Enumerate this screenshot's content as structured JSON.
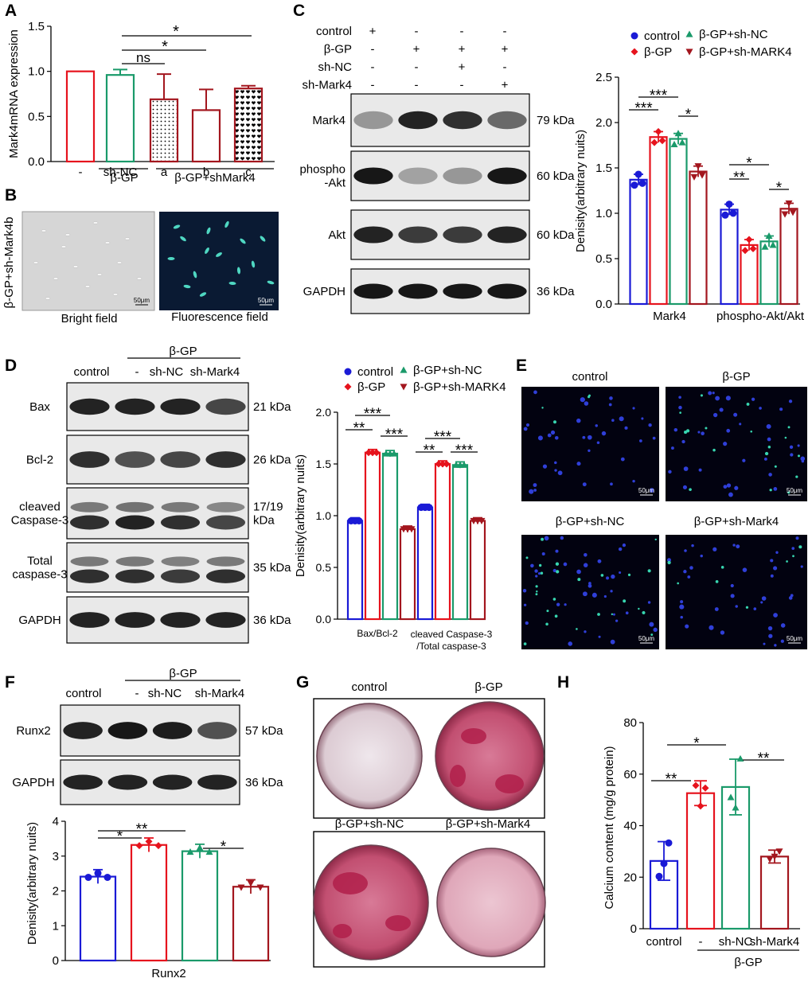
{
  "colors": {
    "control": "#1a1ad6",
    "bgp": "#e6131d",
    "shnc": "#1a9a6a",
    "shmark4": "#a3161e"
  },
  "panelA": {
    "label": "A",
    "ylabel": "Mark4mRNA expression",
    "groups": [
      "β-GP",
      "β-GP+shMark4"
    ],
    "sig": [
      "*",
      "*",
      "ns"
    ],
    "chart_data": {
      "type": "bar",
      "categories": [
        "-",
        "sh-NC",
        "a",
        "b",
        "c"
      ],
      "values": [
        1.0,
        0.96,
        0.69,
        0.57,
        0.81
      ],
      "errors": [
        0,
        0.06,
        0.28,
        0.23,
        0.03
      ],
      "ylim": [
        0,
        1.5
      ],
      "yticks": [
        "0.0",
        "0.5",
        "1.0",
        "1.5"
      ]
    }
  },
  "panelB": {
    "label": "B",
    "side_label": "β-GP+sh-Mark4b",
    "bright_caption": "Bright field",
    "fluor_caption": "Fluorescence field",
    "scale": "50μm"
  },
  "panelC": {
    "label": "C",
    "rows": [
      {
        "name": "control",
        "signs": [
          "+",
          "-",
          "-",
          "-"
        ]
      },
      {
        "name": "β-GP",
        "signs": [
          "-",
          "+",
          "+",
          "+"
        ]
      },
      {
        "name": "sh-NC",
        "signs": [
          "-",
          "-",
          "+",
          "-"
        ]
      },
      {
        "name": "sh-Mark4",
        "signs": [
          "-",
          "-",
          "-",
          "+"
        ]
      }
    ],
    "blots": [
      {
        "name": "Mark4",
        "kda": "79 kDa"
      },
      {
        "name": "phospho\n-Akt",
        "kda": "60 kDa"
      },
      {
        "name": "Akt",
        "kda": "60 kDa"
      },
      {
        "name": "GAPDH",
        "kda": "36 kDa"
      }
    ],
    "legend": [
      "control",
      "β-GP",
      "β-GP+sh-NC",
      "β-GP+sh-MARK4"
    ],
    "ylabel": "Denisity(arbitrary nuits)",
    "chart_data": {
      "type": "bar",
      "categories": [
        "Mark4",
        "phospho-Akt/Akt"
      ],
      "series": [
        {
          "name": "control",
          "values": [
            1.37,
            1.04
          ]
        },
        {
          "name": "β-GP",
          "values": [
            1.84,
            0.65
          ]
        },
        {
          "name": "β-GP+sh-NC",
          "values": [
            1.82,
            0.69
          ]
        },
        {
          "name": "β-GP+sh-MARK4",
          "values": [
            1.46,
            1.05
          ]
        }
      ],
      "ylim": [
        0,
        2.5
      ],
      "yticks": [
        "0.0",
        "0.5",
        "1.0",
        "1.5",
        "2.0",
        "2.5"
      ]
    }
  },
  "panelD": {
    "label": "D",
    "header": "β-GP",
    "lanes": [
      "control",
      "-",
      "sh-NC",
      "sh-Mark4"
    ],
    "blots": [
      {
        "name": "Bax",
        "kda": "21 kDa"
      },
      {
        "name": "Bcl-2",
        "kda": "26 kDa"
      },
      {
        "name": "cleaved\nCaspase-3",
        "kda": "17/19\nkDa"
      },
      {
        "name": "Total\ncaspase-3",
        "kda": "35 kDa"
      },
      {
        "name": "GAPDH",
        "kda": "36 kDa"
      }
    ],
    "legend": [
      "control",
      "β-GP",
      "β-GP+sh-NC",
      "β-GP+sh-MARK4"
    ],
    "ylabel": "Denisity(arbitrary nuits)",
    "cat2_line1": "cleaved Caspase-3",
    "cat2_line2": "/Total caspase-3",
    "chart_data": {
      "type": "bar",
      "categories": [
        "Bax/Bcl-2",
        "cleaved Caspase-3 /Total caspase-3"
      ],
      "series": [
        {
          "name": "control",
          "values": [
            0.95,
            1.08
          ]
        },
        {
          "name": "β-GP",
          "values": [
            1.61,
            1.5
          ]
        },
        {
          "name": "β-GP+sh-NC",
          "values": [
            1.6,
            1.49
          ]
        },
        {
          "name": "β-GP+sh-MARK4",
          "values": [
            0.87,
            0.95
          ]
        }
      ],
      "ylim": [
        0,
        2.0
      ],
      "yticks": [
        "0.0",
        "0.5",
        "1.0",
        "1.5",
        "2.0"
      ]
    }
  },
  "panelE": {
    "label": "E",
    "titles": [
      "control",
      "β-GP",
      "β-GP+sh-NC",
      "β-GP+sh-Mark4"
    ],
    "scale": "50μm"
  },
  "panelF": {
    "label": "F",
    "header": "β-GP",
    "lanes": [
      "control",
      "-",
      "sh-NC",
      "sh-Mark4"
    ],
    "blots": [
      {
        "name": "Runx2",
        "kda": "57 kDa"
      },
      {
        "name": "GAPDH",
        "kda": "36 kDa"
      }
    ],
    "ylabel": "Denisity(arbitrary nuits)",
    "chart_data": {
      "type": "bar",
      "categories": [
        "Runx2"
      ],
      "series": [
        {
          "name": "control",
          "values": [
            2.41
          ]
        },
        {
          "name": "β-GP",
          "values": [
            3.32
          ]
        },
        {
          "name": "β-GP+sh-NC",
          "values": [
            3.14
          ]
        },
        {
          "name": "β-GP+sh-MARK4",
          "values": [
            2.12
          ]
        }
      ],
      "ylim": [
        0,
        4
      ],
      "yticks": [
        "0",
        "1",
        "2",
        "3",
        "4"
      ]
    }
  },
  "panelG": {
    "label": "G",
    "titles": [
      "control",
      "β-GP",
      "β-GP+sh-NC",
      "β-GP+sh-Mark4"
    ]
  },
  "panelH": {
    "label": "H",
    "ylabel": "Calcium content (mg/g protein)",
    "group": "β-GP",
    "chart_data": {
      "type": "bar",
      "categories": [
        "control",
        "-",
        "sh-NC",
        "sh-Mark4"
      ],
      "values": [
        26.3,
        52.6,
        55.0,
        28.0
      ],
      "errors": [
        7.5,
        4.8,
        10.8,
        2.5
      ],
      "ylim": [
        0,
        80
      ],
      "yticks": [
        "0",
        "20",
        "40",
        "60",
        "80"
      ]
    }
  }
}
